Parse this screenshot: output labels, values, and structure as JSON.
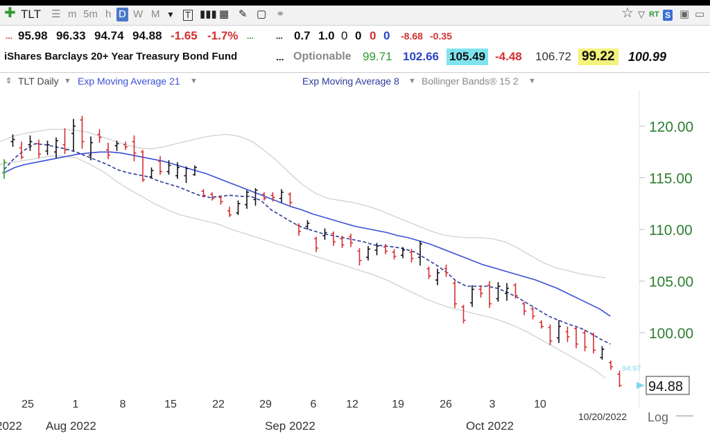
{
  "toolbar": {
    "symbol": "TLT",
    "timeframes": [
      "m",
      "5m",
      "h",
      "D",
      "W",
      "M"
    ],
    "selected": "D"
  },
  "quote_row1": {
    "dots1": "...",
    "open": "95.98",
    "high": "96.33",
    "low": "94.74",
    "close": "94.88",
    "change": "-1.65",
    "change_pct": "-1.7%",
    "dots2": "...",
    "dots3": "...",
    "v1": "0.7",
    "v2": "1.0",
    "v3": "0",
    "v4": "0",
    "v5": "0",
    "v6": "0",
    "v7": "-8.68",
    "v8": "-0.35"
  },
  "quote_row2": {
    "name": "iShares Barclays 20+ Year Treasury Bond Fund",
    "dots": "...",
    "optionable": "Optionable",
    "v1": "99.71",
    "v2": "102.66",
    "v3": "105.49",
    "v4": "-4.48",
    "v5": "106.72",
    "v6": "99.22",
    "v7": "100.99"
  },
  "legend": {
    "series1": "TLT Daily",
    "series2": "Exp Moving Average 21",
    "series3": "Exp Moving Average 8",
    "series4": "Bollinger Bands® 15 2"
  },
  "colors": {
    "up": "#111111",
    "down": "#d32f2f",
    "ema21": "#3b4fd6",
    "ema8": "#2a3a9c",
    "bb": "#d0d0d0",
    "axis": "#2e7d32"
  },
  "chart_data": {
    "type": "candlestick",
    "y_ticks": [
      "120.00",
      "115.00",
      "110.00",
      "105.00",
      "100.00"
    ],
    "ylim": [
      94,
      121.5
    ],
    "x_ticks": [
      "25",
      "1",
      "8",
      "15",
      "22",
      "29",
      "6",
      "12",
      "19",
      "26",
      "3",
      "10"
    ],
    "month_labels": [
      "2022",
      "Aug 2022",
      "Sep 2022",
      "Oct 2022"
    ],
    "last_date": "10/20/2022",
    "last_price": "94.88",
    "last_marker": "94.97",
    "scale_label": "Log",
    "bars": [
      {
        "o": 115.5,
        "h": 116.8,
        "l": 114.9,
        "c": 116.5,
        "up": true
      },
      {
        "o": 118.5,
        "h": 119.2,
        "l": 118.0,
        "c": 118.7,
        "up": true
      },
      {
        "o": 117.9,
        "h": 118.5,
        "l": 116.8,
        "c": 117.0,
        "up": false
      },
      {
        "o": 118.2,
        "h": 119.1,
        "l": 117.6,
        "c": 118.5,
        "up": true
      },
      {
        "o": 118.3,
        "h": 118.7,
        "l": 116.9,
        "c": 117.3,
        "up": false
      },
      {
        "o": 117.6,
        "h": 118.6,
        "l": 117.2,
        "c": 118.2,
        "up": true
      },
      {
        "o": 117.5,
        "h": 118.9,
        "l": 116.9,
        "c": 118.6,
        "up": true
      },
      {
        "o": 118.2,
        "h": 119.8,
        "l": 117.3,
        "c": 117.7,
        "up": false
      },
      {
        "o": 119.3,
        "h": 120.7,
        "l": 117.6,
        "c": 120.0,
        "up": true
      },
      {
        "o": 120.6,
        "h": 121.0,
        "l": 117.8,
        "c": 118.5,
        "up": false
      },
      {
        "o": 117.2,
        "h": 119.0,
        "l": 116.7,
        "c": 118.4,
        "up": true
      },
      {
        "o": 119.2,
        "h": 119.7,
        "l": 118.4,
        "c": 118.9,
        "up": false
      },
      {
        "o": 117.7,
        "h": 118.4,
        "l": 116.8,
        "c": 117.2,
        "up": false
      },
      {
        "o": 118.1,
        "h": 118.6,
        "l": 117.6,
        "c": 118.3,
        "up": true
      },
      {
        "o": 118.2,
        "h": 118.5,
        "l": 117.7,
        "c": 118.0,
        "up": false
      },
      {
        "o": 118.5,
        "h": 119.1,
        "l": 116.6,
        "c": 117.4,
        "up": false
      },
      {
        "o": 117.5,
        "h": 117.7,
        "l": 114.6,
        "c": 114.8,
        "up": false
      },
      {
        "o": 115.1,
        "h": 116.0,
        "l": 115.0,
        "c": 115.7,
        "up": true
      },
      {
        "o": 116.6,
        "h": 117.1,
        "l": 115.3,
        "c": 115.6,
        "up": false
      },
      {
        "o": 115.6,
        "h": 116.7,
        "l": 115.3,
        "c": 116.2,
        "up": true
      },
      {
        "o": 115.2,
        "h": 116.5,
        "l": 114.9,
        "c": 116.0,
        "up": true
      },
      {
        "o": 115.2,
        "h": 116.1,
        "l": 114.5,
        "c": 115.9,
        "up": true
      },
      {
        "o": 115.3,
        "h": 116.2,
        "l": 115.2,
        "c": 116.0,
        "up": true
      },
      {
        "o": 113.7,
        "h": 113.9,
        "l": 113.1,
        "c": 113.3,
        "up": false
      },
      {
        "o": 113.4,
        "h": 113.6,
        "l": 112.8,
        "c": 113.0,
        "up": false
      },
      {
        "o": 113.1,
        "h": 113.3,
        "l": 112.4,
        "c": 112.7,
        "up": false
      },
      {
        "o": 111.8,
        "h": 112.2,
        "l": 111.2,
        "c": 111.4,
        "up": false
      },
      {
        "o": 111.6,
        "h": 112.8,
        "l": 111.4,
        "c": 112.5,
        "up": true
      },
      {
        "o": 112.4,
        "h": 113.8,
        "l": 112.0,
        "c": 113.6,
        "up": true
      },
      {
        "o": 112.9,
        "h": 114.0,
        "l": 112.3,
        "c": 113.8,
        "up": true
      },
      {
        "o": 113.4,
        "h": 113.6,
        "l": 112.8,
        "c": 113.0,
        "up": false
      },
      {
        "o": 113.3,
        "h": 113.6,
        "l": 112.7,
        "c": 113.1,
        "up": false
      },
      {
        "o": 113.0,
        "h": 113.9,
        "l": 112.6,
        "c": 113.6,
        "up": true
      },
      {
        "o": 113.4,
        "h": 113.6,
        "l": 112.3,
        "c": 112.6,
        "up": false
      },
      {
        "o": 110.4,
        "h": 110.6,
        "l": 109.4,
        "c": 109.8,
        "up": false
      },
      {
        "o": 110.3,
        "h": 110.9,
        "l": 110.0,
        "c": 110.6,
        "up": true
      },
      {
        "o": 109.1,
        "h": 109.3,
        "l": 107.8,
        "c": 108.2,
        "up": false
      },
      {
        "o": 109.4,
        "h": 110.1,
        "l": 109.0,
        "c": 109.7,
        "up": true
      },
      {
        "o": 109.6,
        "h": 109.8,
        "l": 108.4,
        "c": 108.8,
        "up": false
      },
      {
        "o": 109.1,
        "h": 109.4,
        "l": 108.2,
        "c": 108.5,
        "up": false
      },
      {
        "o": 109.3,
        "h": 109.6,
        "l": 108.3,
        "c": 108.7,
        "up": false
      },
      {
        "o": 107.9,
        "h": 108.2,
        "l": 106.5,
        "c": 107.0,
        "up": false
      },
      {
        "o": 107.3,
        "h": 108.4,
        "l": 107.0,
        "c": 108.1,
        "up": true
      },
      {
        "o": 108.0,
        "h": 108.7,
        "l": 107.5,
        "c": 108.4,
        "up": true
      },
      {
        "o": 108.3,
        "h": 108.6,
        "l": 107.6,
        "c": 107.9,
        "up": false
      },
      {
        "o": 107.8,
        "h": 108.1,
        "l": 107.1,
        "c": 107.4,
        "up": false
      },
      {
        "o": 107.5,
        "h": 108.3,
        "l": 107.2,
        "c": 108.0,
        "up": true
      },
      {
        "o": 107.8,
        "h": 108.1,
        "l": 106.8,
        "c": 107.2,
        "up": false
      },
      {
        "o": 107.3,
        "h": 108.9,
        "l": 106.5,
        "c": 108.6,
        "up": true
      },
      {
        "o": 106.2,
        "h": 106.4,
        "l": 105.2,
        "c": 105.5,
        "up": false
      },
      {
        "o": 105.1,
        "h": 106.2,
        "l": 104.6,
        "c": 105.8,
        "up": true
      },
      {
        "o": 106.2,
        "h": 106.6,
        "l": 105.4,
        "c": 105.8,
        "up": false
      },
      {
        "o": 104.8,
        "h": 105.0,
        "l": 102.4,
        "c": 102.8,
        "up": false
      },
      {
        "o": 102.5,
        "h": 102.7,
        "l": 100.9,
        "c": 101.2,
        "up": false
      },
      {
        "o": 102.9,
        "h": 104.6,
        "l": 102.5,
        "c": 104.2,
        "up": true
      },
      {
        "o": 104.2,
        "h": 104.6,
        "l": 103.4,
        "c": 103.8,
        "up": false
      },
      {
        "o": 104.6,
        "h": 105.0,
        "l": 102.4,
        "c": 102.8,
        "up": false
      },
      {
        "o": 103.3,
        "h": 104.9,
        "l": 103.0,
        "c": 104.5,
        "up": true
      },
      {
        "o": 103.8,
        "h": 104.8,
        "l": 103.1,
        "c": 104.3,
        "up": true
      },
      {
        "o": 104.6,
        "h": 104.8,
        "l": 103.3,
        "c": 103.6,
        "up": false
      },
      {
        "o": 102.8,
        "h": 103.0,
        "l": 101.7,
        "c": 102.1,
        "up": false
      },
      {
        "o": 102.3,
        "h": 102.5,
        "l": 101.3,
        "c": 101.6,
        "up": false
      },
      {
        "o": 101.0,
        "h": 101.2,
        "l": 100.4,
        "c": 100.6,
        "up": false
      },
      {
        "o": 100.5,
        "h": 100.8,
        "l": 98.8,
        "c": 99.2,
        "up": false
      },
      {
        "o": 99.5,
        "h": 101.2,
        "l": 99.0,
        "c": 100.6,
        "up": true
      },
      {
        "o": 100.1,
        "h": 100.6,
        "l": 99.1,
        "c": 99.6,
        "up": false
      },
      {
        "o": 100.4,
        "h": 100.6,
        "l": 98.5,
        "c": 98.9,
        "up": false
      },
      {
        "o": 100.0,
        "h": 100.3,
        "l": 98.2,
        "c": 98.6,
        "up": false
      },
      {
        "o": 99.8,
        "h": 100.0,
        "l": 98.0,
        "c": 98.3,
        "up": false
      },
      {
        "o": 97.6,
        "h": 98.7,
        "l": 97.4,
        "c": 98.4,
        "up": true
      },
      {
        "o": 97.1,
        "h": 97.3,
        "l": 96.4,
        "c": 96.7,
        "up": false
      },
      {
        "o": 95.98,
        "h": 96.33,
        "l": 94.74,
        "c": 94.88,
        "up": false
      }
    ],
    "ema21": [
      115.5,
      116.0,
      116.3,
      116.5,
      116.7,
      116.9,
      117.1,
      117.3,
      117.4,
      117.5,
      117.5,
      117.4,
      117.2,
      117.0,
      116.8,
      116.6,
      116.3,
      116.0,
      115.7,
      115.4,
      115.0,
      114.6,
      114.2,
      113.8,
      113.4,
      113.0,
      112.6,
      112.2,
      111.9,
      111.5,
      111.2,
      110.9,
      110.6,
      110.3,
      110.1,
      109.9,
      109.7,
      109.4,
      109.2,
      108.9,
      108.6,
      108.2,
      107.8,
      107.4,
      107.0,
      106.6,
      106.3,
      106.0,
      105.7,
      105.4,
      105.1,
      104.7,
      104.3,
      103.8,
      103.3,
      102.8,
      102.3,
      101.6
    ],
    "ema8": [
      115.8,
      116.9,
      117.7,
      118.3,
      118.2,
      118.0,
      117.8,
      117.5,
      117.1,
      116.7,
      116.3,
      115.8,
      115.5,
      115.3,
      115.1,
      114.7,
      114.4,
      114.1,
      113.7,
      113.3,
      113.1,
      113.2,
      113.3,
      113.2,
      113.2,
      112.8,
      111.9,
      111.3,
      110.7,
      110.2,
      109.9,
      109.6,
      109.4,
      109.2,
      109.0,
      108.8,
      108.5,
      108.4,
      108.3,
      108.1,
      107.8,
      107.2,
      106.6,
      105.9,
      105.0,
      104.5,
      104.5,
      104.5,
      104.3,
      103.9,
      103.4,
      102.8,
      102.2,
      101.6,
      101.2,
      100.8,
      100.5,
      100.0,
      99.4,
      98.9
    ],
    "bb_upper": [
      118.5,
      119.0,
      119.3,
      119.5,
      119.7,
      119.7,
      119.6,
      119.4,
      119.0,
      118.6,
      118.2,
      117.9,
      117.8,
      118.0,
      118.3,
      118.6,
      118.9,
      119.1,
      119.2,
      119.0,
      118.5,
      117.6,
      116.6,
      115.4,
      114.3,
      113.5,
      113.0,
      112.8,
      112.6,
      112.3,
      111.9,
      111.4,
      110.9,
      110.4,
      109.9,
      109.5,
      109.3,
      109.2,
      109.2,
      109.1,
      108.8,
      108.2,
      107.5,
      106.8,
      106.3,
      106.0,
      105.7,
      105.5,
      105.3
    ],
    "bb_lower": [
      116.3,
      116.5,
      116.7,
      116.9,
      117.1,
      117.1,
      116.9,
      116.3,
      115.6,
      114.7,
      113.9,
      113.2,
      112.5,
      111.9,
      111.4,
      111.1,
      110.8,
      110.5,
      110.0,
      109.6,
      109.2,
      108.8,
      108.4,
      108.0,
      107.6,
      107.2,
      106.8,
      106.4,
      106.0,
      105.6,
      105.1,
      104.5,
      103.9,
      103.3,
      102.8,
      102.4,
      102.1,
      101.8,
      101.5,
      101.1,
      100.6,
      100.0,
      99.3,
      98.6,
      97.9,
      97.2,
      96.5,
      95.6
    ]
  }
}
